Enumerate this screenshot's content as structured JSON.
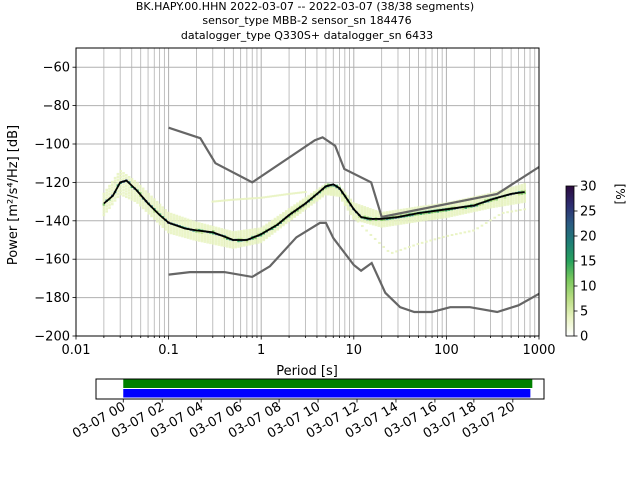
{
  "chart_data": {
    "type": "heatmap",
    "title_lines": [
      "BK.HAPY.00.HHN   2022-03-07 -- 2022-03-07  (38/38 segments)",
      "sensor_type MBB-2 sensor_sn 184476",
      "datalogger_type Q330S+ datalogger_sn 6433"
    ],
    "xlabel": "Period [s]",
    "ylabel": "Power [m²/s⁴/Hz] [dB]",
    "x_scale": "log",
    "xlim": [
      0.01,
      1000
    ],
    "ylim": [
      -200,
      -50
    ],
    "x_ticks": [
      0.01,
      0.1,
      1,
      10,
      100,
      1000
    ],
    "x_tick_labels": [
      "0.01",
      "0.1",
      "1",
      "10",
      "100",
      "1000"
    ],
    "y_ticks": [
      -200,
      -180,
      -160,
      -140,
      -120,
      -100,
      -80,
      -60
    ],
    "y_tick_labels": [
      "−200",
      "−180",
      "−160",
      "−140",
      "−120",
      "−100",
      "−80",
      "−60"
    ],
    "grid": true,
    "colorbar": {
      "label": "[%]",
      "range": [
        0,
        30
      ],
      "ticks": [
        0,
        5,
        10,
        15,
        20,
        25,
        30
      ],
      "tick_labels": [
        "0",
        "5",
        "10",
        "15",
        "20",
        "25",
        "30"
      ],
      "colormap": [
        "#ffffff",
        "#e8f3c0",
        "#b9dd83",
        "#7ac85d",
        "#27a25d",
        "#1f7d76",
        "#2b5a82",
        "#2d2c6f",
        "#2c0a3e"
      ]
    },
    "mean_curve": {
      "name": "mean",
      "color": "#000000",
      "points": [
        [
          0.02,
          -131
        ],
        [
          0.025,
          -127
        ],
        [
          0.03,
          -120
        ],
        [
          0.035,
          -119
        ],
        [
          0.045,
          -124
        ],
        [
          0.06,
          -131
        ],
        [
          0.08,
          -137
        ],
        [
          0.1,
          -141
        ],
        [
          0.15,
          -144
        ],
        [
          0.2,
          -145
        ],
        [
          0.3,
          -146
        ],
        [
          0.5,
          -150
        ],
        [
          0.7,
          -150
        ],
        [
          1,
          -147
        ],
        [
          1.5,
          -142
        ],
        [
          2,
          -137
        ],
        [
          3,
          -131
        ],
        [
          4,
          -126
        ],
        [
          5,
          -122
        ],
        [
          6,
          -121
        ],
        [
          7,
          -123
        ],
        [
          8,
          -127
        ],
        [
          10,
          -134
        ],
        [
          12,
          -138
        ],
        [
          15,
          -139
        ],
        [
          20,
          -139
        ],
        [
          30,
          -138
        ],
        [
          50,
          -136
        ],
        [
          100,
          -134
        ],
        [
          200,
          -132
        ],
        [
          300,
          -129
        ],
        [
          500,
          -126
        ],
        [
          700,
          -125
        ]
      ]
    },
    "noise_models": [
      {
        "name": "NHNM",
        "color": "#666666",
        "points": [
          [
            0.1,
            -91.5
          ],
          [
            0.22,
            -97
          ],
          [
            0.32,
            -110
          ],
          [
            0.8,
            -120
          ],
          [
            3.8,
            -98
          ],
          [
            4.6,
            -96.5
          ],
          [
            6.3,
            -101
          ],
          [
            7.9,
            -113
          ],
          [
            15.4,
            -120
          ],
          [
            20,
            -138
          ],
          [
            354,
            -126
          ],
          [
            1000,
            -112
          ]
        ]
      },
      {
        "name": "NLNM",
        "color": "#666666",
        "points": [
          [
            0.1,
            -168
          ],
          [
            0.17,
            -166.7
          ],
          [
            0.4,
            -166.7
          ],
          [
            0.8,
            -169.2
          ],
          [
            1.24,
            -163.7
          ],
          [
            2.4,
            -148.6
          ],
          [
            4.3,
            -141.1
          ],
          [
            5,
            -141.1
          ],
          [
            6,
            -149
          ],
          [
            10,
            -163
          ],
          [
            12,
            -166
          ],
          [
            15.6,
            -162
          ],
          [
            21.9,
            -177.5
          ],
          [
            31.6,
            -185
          ],
          [
            45,
            -187.5
          ],
          [
            70,
            -187.5
          ],
          [
            110,
            -185
          ],
          [
            180,
            -185
          ],
          [
            354,
            -187.5
          ],
          [
            600,
            -184
          ],
          [
            1000,
            -178
          ]
        ]
      }
    ],
    "density_bands": [
      {
        "name": "upper-spread",
        "points": [
          [
            0.02,
            -126
          ],
          [
            0.03,
            -114
          ],
          [
            0.045,
            -120
          ],
          [
            0.1,
            -136
          ],
          [
            0.2,
            -141
          ],
          [
            0.5,
            -146
          ],
          [
            1,
            -144
          ],
          [
            2,
            -134
          ],
          [
            5,
            -121
          ],
          [
            7,
            -122
          ],
          [
            10,
            -131
          ],
          [
            20,
            -136
          ],
          [
            50,
            -133
          ],
          [
            100,
            -131
          ],
          [
            300,
            -126
          ],
          [
            700,
            -121
          ]
        ]
      },
      {
        "name": "lower-spread",
        "points": [
          [
            0.02,
            -137
          ],
          [
            0.03,
            -126
          ],
          [
            0.045,
            -130
          ],
          [
            0.1,
            -146
          ],
          [
            0.2,
            -150
          ],
          [
            0.5,
            -154
          ],
          [
            1,
            -151
          ],
          [
            2,
            -140
          ],
          [
            5,
            -126
          ],
          [
            7,
            -127
          ],
          [
            10,
            -139
          ],
          [
            20,
            -143
          ],
          [
            50,
            -140
          ],
          [
            100,
            -138
          ],
          [
            300,
            -133
          ],
          [
            700,
            -130
          ]
        ]
      },
      {
        "name": "faint-low",
        "points": [
          [
            10,
            -138
          ],
          [
            15,
            -147
          ],
          [
            25,
            -157
          ],
          [
            50,
            -152
          ],
          [
            100,
            -148
          ],
          [
            200,
            -145
          ],
          [
            400,
            -136
          ],
          [
            700,
            -134
          ]
        ]
      },
      {
        "name": "faint-high",
        "points": [
          [
            0.3,
            -130
          ],
          [
            0.5,
            -129
          ],
          [
            1,
            -128
          ],
          [
            2,
            -126
          ],
          [
            3,
            -125
          ]
        ]
      }
    ],
    "timeline": {
      "labels": [
        "03-07 00",
        "03-07 02",
        "03-07 04",
        "03-07 06",
        "03-07 08",
        "03-07 10",
        "03-07 12",
        "03-07 14",
        "03-07 16",
        "03-07 18",
        "03-07 20"
      ],
      "hours": [
        0,
        2,
        4,
        6,
        8,
        10,
        12,
        14,
        16,
        18,
        20
      ],
      "range_hours": [
        -1.4,
        21.6
      ],
      "bars": [
        {
          "name": "used",
          "color": "#008000",
          "start_hour": 0,
          "end_hour": 21.0
        },
        {
          "name": "available",
          "color": "#0000ff",
          "start_hour": 0,
          "end_hour": 20.9
        }
      ]
    }
  }
}
